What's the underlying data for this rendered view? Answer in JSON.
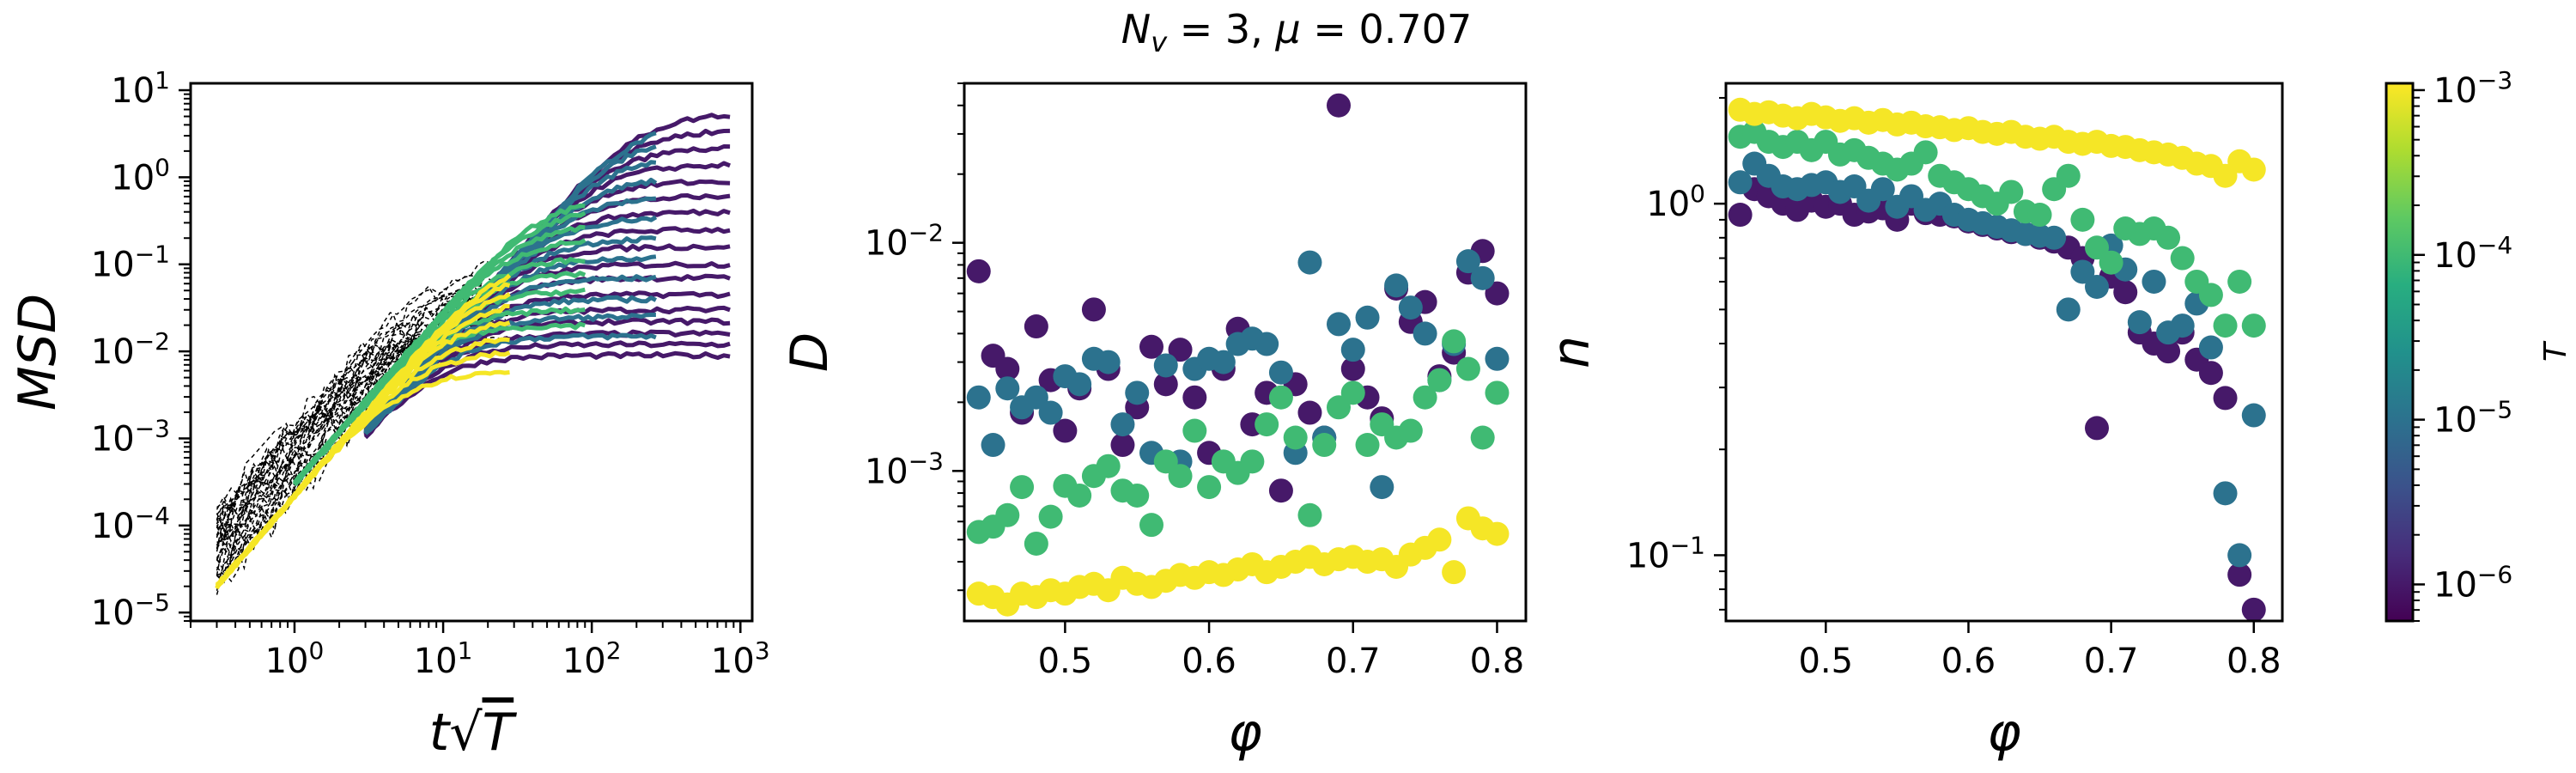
{
  "figure": {
    "suptitle": "N_v = 3, μ = 0.707"
  },
  "colormap": {
    "name": "viridis",
    "stops": [
      "#440154",
      "#472d7b",
      "#3b528b",
      "#2c728e",
      "#21918c",
      "#28ae80",
      "#5ec962",
      "#addc30",
      "#fde725"
    ]
  },
  "chart_data": [
    {
      "type": "line",
      "id": "msd",
      "xlabel": "t√T",
      "ylabel": "MSD",
      "xscale": "log",
      "yscale": "log",
      "xlim": [
        0.2,
        1200
      ],
      "ylim": [
        8e-06,
        12
      ],
      "xticks": [
        1,
        10,
        100,
        1000
      ],
      "xtick_labels": [
        "10^0",
        "10^1",
        "10^2",
        "10^3"
      ],
      "yticks": [
        1e-05,
        0.0001,
        0.001,
        0.01,
        0.1,
        1,
        10
      ],
      "ytick_labels": [
        "10^-5",
        "10^-4",
        "10^-3",
        "10^-2",
        "10^-1",
        "10^0",
        "10^1"
      ],
      "grid": false,
      "series": [
        {
          "T": 1e-06,
          "x_range": [
            3,
            850
          ],
          "plateaus": [
            0.009,
            0.012,
            0.016,
            0.022,
            0.03,
            0.045,
            0.07,
            0.1,
            0.16,
            0.25,
            0.4,
            0.6,
            0.9,
            1.4,
            2.2,
            3.5,
            5.5
          ]
        },
        {
          "T": 1e-05,
          "x_range": [
            3,
            270
          ],
          "plateaus": [
            0.015,
            0.025,
            0.04,
            0.07,
            0.12,
            0.2,
            0.35,
            0.6,
            1.0,
            1.8,
            3.0,
            4.5
          ]
        },
        {
          "T": 0.0001,
          "x_range": [
            1,
            90
          ],
          "plateaus": [
            0.02,
            0.03,
            0.05,
            0.08,
            0.12,
            0.2,
            0.3,
            0.45,
            0.6
          ]
        },
        {
          "T": 0.001,
          "x_range": [
            0.3,
            28
          ],
          "plateaus": [
            0.006,
            0.01,
            0.015,
            0.025,
            0.04,
            0.06,
            0.09,
            0.13
          ]
        }
      ],
      "reference": {
        "style": "black dashed",
        "x_range": [
          0.3,
          30
        ],
        "y_range": [
          3e-05,
          0.2
        ]
      }
    },
    {
      "type": "scatter",
      "id": "D",
      "xlabel": "φ",
      "ylabel": "D",
      "xscale": "linear",
      "yscale": "log",
      "xlim": [
        0.43,
        0.82
      ],
      "ylim": [
        0.00022,
        0.05
      ],
      "xticks": [
        0.5,
        0.6,
        0.7,
        0.8
      ],
      "xtick_labels": [
        "0.5",
        "0.6",
        "0.7",
        "0.8"
      ],
      "yticks": [
        0.001,
        0.01
      ],
      "ytick_labels": [
        "10^-3",
        "10^-2"
      ],
      "grid": false,
      "series": [
        {
          "T": 1e-06,
          "x": [
            0.44,
            0.45,
            0.46,
            0.47,
            0.48,
            0.49,
            0.5,
            0.51,
            0.52,
            0.53,
            0.54,
            0.55,
            0.56,
            0.57,
            0.58,
            0.59,
            0.6,
            0.61,
            0.62,
            0.63,
            0.64,
            0.65,
            0.66,
            0.67,
            0.68,
            0.69,
            0.7,
            0.71,
            0.72,
            0.73,
            0.74,
            0.75,
            0.76,
            0.77,
            0.78,
            0.79,
            0.8
          ],
          "y": [
            0.0075,
            0.0032,
            0.0028,
            0.0018,
            0.0043,
            0.0025,
            0.0015,
            0.0023,
            0.0051,
            0.0028,
            0.0013,
            0.0019,
            0.0035,
            0.0024,
            0.0034,
            0.0021,
            0.0012,
            0.0028,
            0.0042,
            0.0016,
            0.0022,
            0.00082,
            0.0024,
            0.0018,
            0.0014,
            0.04,
            0.0028,
            0.0021,
            0.0017,
            0.0063,
            0.0045,
            0.0055,
            0.0026,
            0.0033,
            0.0074,
            0.0092,
            0.006
          ]
        },
        {
          "T": 1e-05,
          "x": [
            0.44,
            0.45,
            0.46,
            0.47,
            0.48,
            0.49,
            0.5,
            0.51,
            0.52,
            0.53,
            0.54,
            0.55,
            0.56,
            0.57,
            0.58,
            0.59,
            0.6,
            0.61,
            0.62,
            0.63,
            0.64,
            0.65,
            0.66,
            0.67,
            0.68,
            0.69,
            0.7,
            0.71,
            0.72,
            0.73,
            0.74,
            0.75,
            0.76,
            0.77,
            0.78,
            0.79,
            0.8
          ],
          "y": [
            0.0021,
            0.0013,
            0.0023,
            0.0019,
            0.0021,
            0.0018,
            0.0026,
            0.0024,
            0.0031,
            0.003,
            0.0016,
            0.0022,
            0.0012,
            0.0029,
            0.0011,
            0.0028,
            0.0031,
            0.003,
            0.0036,
            0.0038,
            0.0036,
            0.0027,
            0.0012,
            0.0082,
            0.0014,
            0.0044,
            0.0034,
            0.0047,
            0.00085,
            0.0065,
            0.0052,
            0.004,
            0.0025,
            0.0036,
            0.0083,
            0.007,
            0.0031
          ]
        },
        {
          "T": 0.0001,
          "x": [
            0.44,
            0.45,
            0.46,
            0.47,
            0.48,
            0.49,
            0.5,
            0.51,
            0.52,
            0.53,
            0.54,
            0.55,
            0.56,
            0.57,
            0.58,
            0.59,
            0.6,
            0.61,
            0.62,
            0.63,
            0.64,
            0.65,
            0.66,
            0.67,
            0.68,
            0.69,
            0.7,
            0.71,
            0.72,
            0.73,
            0.74,
            0.75,
            0.76,
            0.77,
            0.78,
            0.79,
            0.8
          ],
          "y": [
            0.00054,
            0.00057,
            0.00064,
            0.00085,
            0.00048,
            0.00063,
            0.00086,
            0.00078,
            0.00095,
            0.00105,
            0.00082,
            0.00078,
            0.00058,
            0.0011,
            0.00095,
            0.0015,
            0.00085,
            0.0011,
            0.00098,
            0.0011,
            0.0016,
            0.0021,
            0.0014,
            0.00064,
            0.0013,
            0.0019,
            0.0022,
            0.0013,
            0.0016,
            0.0014,
            0.0015,
            0.0021,
            0.0025,
            0.0037,
            0.0028,
            0.0014,
            0.0022
          ]
        },
        {
          "T": 0.001,
          "x": [
            0.44,
            0.45,
            0.46,
            0.47,
            0.48,
            0.49,
            0.5,
            0.51,
            0.52,
            0.53,
            0.54,
            0.55,
            0.56,
            0.57,
            0.58,
            0.59,
            0.6,
            0.61,
            0.62,
            0.63,
            0.64,
            0.65,
            0.66,
            0.67,
            0.68,
            0.69,
            0.7,
            0.71,
            0.72,
            0.73,
            0.74,
            0.75,
            0.76,
            0.77,
            0.78,
            0.79,
            0.8
          ],
          "y": [
            0.00029,
            0.00028,
            0.00026,
            0.00029,
            0.00028,
            0.0003,
            0.00029,
            0.00031,
            0.00032,
            0.0003,
            0.00034,
            0.00032,
            0.00031,
            0.00033,
            0.00035,
            0.00034,
            0.00036,
            0.00035,
            0.00037,
            0.00039,
            0.00036,
            0.00038,
            0.0004,
            0.00042,
            0.00039,
            0.00041,
            0.00042,
            0.0004,
            0.00041,
            0.00038,
            0.00043,
            0.00046,
            0.0005,
            0.00036,
            0.00062,
            0.00056,
            0.00053
          ]
        }
      ]
    },
    {
      "type": "scatter",
      "id": "n",
      "xlabel": "φ",
      "ylabel": "n",
      "xscale": "linear",
      "yscale": "log",
      "xlim": [
        0.43,
        0.82
      ],
      "ylim": [
        0.065,
        2.2
      ],
      "xticks": [
        0.5,
        0.6,
        0.7,
        0.8
      ],
      "xtick_labels": [
        "0.5",
        "0.6",
        "0.7",
        "0.8"
      ],
      "yticks": [
        0.1,
        1
      ],
      "ytick_labels": [
        "10^-1",
        "10^0"
      ],
      "grid": false,
      "series": [
        {
          "T": 1e-06,
          "x": [
            0.44,
            0.45,
            0.46,
            0.47,
            0.48,
            0.49,
            0.5,
            0.51,
            0.52,
            0.53,
            0.54,
            0.55,
            0.56,
            0.57,
            0.58,
            0.59,
            0.6,
            0.61,
            0.62,
            0.63,
            0.64,
            0.65,
            0.66,
            0.67,
            0.68,
            0.69,
            0.7,
            0.71,
            0.72,
            0.73,
            0.74,
            0.75,
            0.76,
            0.77,
            0.78,
            0.79,
            0.8
          ],
          "y": [
            0.93,
            1.1,
            1.05,
            1.0,
            0.96,
            1.02,
            0.98,
            1.0,
            0.93,
            0.95,
            0.97,
            0.9,
            1.0,
            0.94,
            0.93,
            0.92,
            0.89,
            0.87,
            0.85,
            0.83,
            0.82,
            0.8,
            0.78,
            0.75,
            0.7,
            0.23,
            0.62,
            0.56,
            0.43,
            0.4,
            0.38,
            0.43,
            0.36,
            0.33,
            0.28,
            0.088,
            0.07
          ]
        },
        {
          "T": 1e-05,
          "x": [
            0.44,
            0.45,
            0.46,
            0.47,
            0.48,
            0.49,
            0.5,
            0.51,
            0.52,
            0.53,
            0.54,
            0.55,
            0.56,
            0.57,
            0.58,
            0.59,
            0.6,
            0.61,
            0.62,
            0.63,
            0.64,
            0.65,
            0.66,
            0.67,
            0.68,
            0.69,
            0.7,
            0.71,
            0.72,
            0.73,
            0.74,
            0.75,
            0.76,
            0.77,
            0.78,
            0.79,
            0.8
          ],
          "y": [
            1.15,
            1.3,
            1.2,
            1.12,
            1.1,
            1.13,
            1.15,
            1.08,
            1.12,
            1.02,
            1.1,
            0.98,
            1.05,
            0.96,
            1.0,
            0.93,
            0.9,
            0.88,
            0.86,
            0.84,
            0.82,
            0.81,
            0.8,
            0.5,
            0.64,
            0.58,
            0.76,
            0.65,
            0.46,
            0.6,
            0.43,
            0.45,
            0.52,
            0.39,
            0.15,
            0.1,
            0.25
          ]
        },
        {
          "T": 0.0001,
          "x": [
            0.44,
            0.45,
            0.46,
            0.47,
            0.48,
            0.49,
            0.5,
            0.51,
            0.52,
            0.53,
            0.54,
            0.55,
            0.56,
            0.57,
            0.58,
            0.59,
            0.6,
            0.61,
            0.62,
            0.63,
            0.64,
            0.65,
            0.66,
            0.67,
            0.68,
            0.69,
            0.7,
            0.71,
            0.72,
            0.73,
            0.74,
            0.75,
            0.76,
            0.77,
            0.78,
            0.79,
            0.8
          ],
          "y": [
            1.55,
            1.6,
            1.5,
            1.45,
            1.5,
            1.42,
            1.5,
            1.38,
            1.42,
            1.35,
            1.3,
            1.25,
            1.3,
            1.4,
            1.2,
            1.15,
            1.1,
            1.05,
            1.0,
            1.08,
            0.95,
            0.93,
            1.1,
            1.2,
            0.9,
            0.75,
            0.68,
            0.85,
            0.82,
            0.85,
            0.8,
            0.7,
            0.6,
            0.55,
            0.45,
            0.6,
            0.45
          ]
        },
        {
          "T": 0.001,
          "x": [
            0.44,
            0.45,
            0.46,
            0.47,
            0.48,
            0.49,
            0.5,
            0.51,
            0.52,
            0.53,
            0.54,
            0.55,
            0.56,
            0.57,
            0.58,
            0.59,
            0.6,
            0.61,
            0.62,
            0.63,
            0.64,
            0.65,
            0.66,
            0.67,
            0.68,
            0.69,
            0.7,
            0.71,
            0.72,
            0.73,
            0.74,
            0.75,
            0.76,
            0.77,
            0.78,
            0.79,
            0.8
          ],
          "y": [
            1.85,
            1.8,
            1.82,
            1.78,
            1.75,
            1.8,
            1.76,
            1.72,
            1.75,
            1.7,
            1.73,
            1.68,
            1.7,
            1.66,
            1.65,
            1.62,
            1.64,
            1.6,
            1.58,
            1.6,
            1.55,
            1.53,
            1.55,
            1.5,
            1.48,
            1.5,
            1.46,
            1.45,
            1.42,
            1.4,
            1.38,
            1.35,
            1.3,
            1.28,
            1.2,
            1.32,
            1.25
          ]
        }
      ]
    },
    {
      "type": "colorbar",
      "id": "colorbar",
      "label": "T",
      "scale": "log",
      "range": [
        6e-07,
        0.0011
      ],
      "ticks": [
        1e-06,
        1e-05,
        0.0001,
        0.001
      ],
      "tick_labels": [
        "10^-6",
        "10^-5",
        "10^-4",
        "10^-3"
      ]
    }
  ]
}
